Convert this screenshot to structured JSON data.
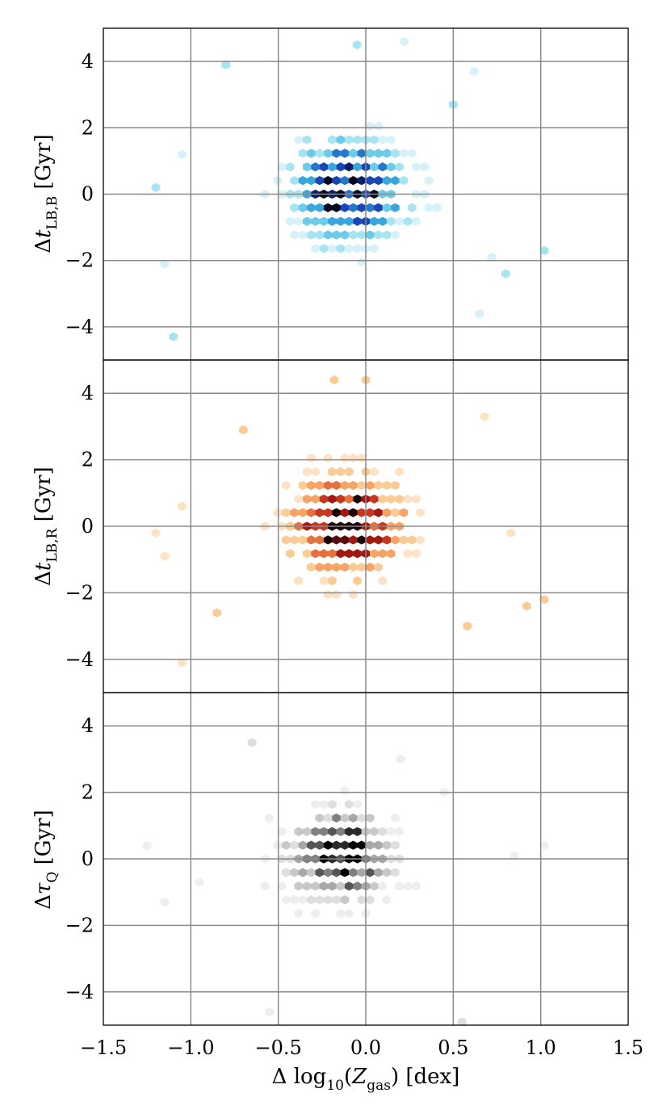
{
  "chart_data": [
    {
      "type": "heatmap",
      "subtype": "hexbin",
      "panel": "top",
      "colormap": [
        "#d6f2f8",
        "#a7e4f2",
        "#6ccbe8",
        "#3aa6de",
        "#2577cc",
        "#1a47b4",
        "#0b1f6a",
        "#050a22"
      ],
      "ylabel": "Δt_LB,B [Gyr]",
      "xlim": [
        -1.5,
        1.5
      ],
      "ylim": [
        -5,
        5
      ],
      "yticks": [
        "−4",
        "−2",
        "0",
        "2",
        "4"
      ],
      "grid": true,
      "center": [
        -0.1,
        0.1
      ],
      "spread": [
        0.32,
        1.6
      ],
      "sparse_points": [
        [
          -1.2,
          0.2
        ],
        [
          -1.15,
          -2.1
        ],
        [
          -1.1,
          -4.3
        ],
        [
          -1.05,
          1.2
        ],
        [
          -0.8,
          3.9
        ],
        [
          0.62,
          3.7
        ],
        [
          0.72,
          -1.9
        ],
        [
          1.02,
          -1.7
        ],
        [
          0.65,
          -3.6
        ],
        [
          0.22,
          4.6
        ],
        [
          -0.05,
          4.5
        ],
        [
          0.8,
          -2.4
        ],
        [
          0.5,
          2.7
        ]
      ]
    },
    {
      "type": "heatmap",
      "subtype": "hexbin",
      "panel": "middle",
      "colormap": [
        "#fde3c3",
        "#fbcb95",
        "#f5a466",
        "#e6703f",
        "#c7361f",
        "#a01a12",
        "#5a0a0a",
        "#1a0505"
      ],
      "ylabel": "Δt_LB,R [Gyr]",
      "xlim": [
        -1.5,
        1.5
      ],
      "ylim": [
        -5,
        5
      ],
      "yticks": [
        "−4",
        "−2",
        "0",
        "2",
        "4"
      ],
      "grid": true,
      "center": [
        -0.1,
        0.05
      ],
      "spread": [
        0.32,
        1.5
      ],
      "sparse_points": [
        [
          -1.2,
          -0.2
        ],
        [
          -1.05,
          0.6
        ],
        [
          -1.05,
          -4.1
        ],
        [
          -1.15,
          -0.9
        ],
        [
          -0.85,
          -2.6
        ],
        [
          0.68,
          3.3
        ],
        [
          0.83,
          -0.2
        ],
        [
          1.02,
          -2.2
        ],
        [
          0.92,
          -2.4
        ],
        [
          0.58,
          -3.0
        ],
        [
          -0.18,
          4.4
        ],
        [
          0.0,
          4.4
        ],
        [
          -0.7,
          2.9
        ]
      ]
    },
    {
      "type": "heatmap",
      "subtype": "hexbin",
      "panel": "bottom",
      "colormap": [
        "#eeeeee",
        "#dedede",
        "#c8c8c8",
        "#a8a8a8",
        "#808080",
        "#555555",
        "#2b2b2b",
        "#000000"
      ],
      "ylabel": "Δτ_Q [Gyr]",
      "xlabel": "Δ log10(Z_gas) [dex]",
      "xlim": [
        -1.5,
        1.5
      ],
      "ylim": [
        -5,
        5
      ],
      "xticks": [
        "−1.5",
        "−1.0",
        "−0.5",
        "0.0",
        "0.5",
        "1.0",
        "1.5"
      ],
      "yticks": [
        "−4",
        "−2",
        "0",
        "2",
        "4"
      ],
      "grid": true,
      "center": [
        -0.15,
        0.1
      ],
      "spread": [
        0.3,
        1.4
      ],
      "sparse_points": [
        [
          -1.25,
          0.4
        ],
        [
          -1.15,
          -1.3
        ],
        [
          -0.65,
          3.5
        ],
        [
          0.2,
          3.0
        ],
        [
          1.02,
          0.4
        ],
        [
          0.85,
          0.1
        ],
        [
          -0.55,
          -4.6
        ],
        [
          0.55,
          -4.9
        ],
        [
          0.45,
          2.0
        ],
        [
          -0.95,
          -0.7
        ]
      ]
    }
  ]
}
